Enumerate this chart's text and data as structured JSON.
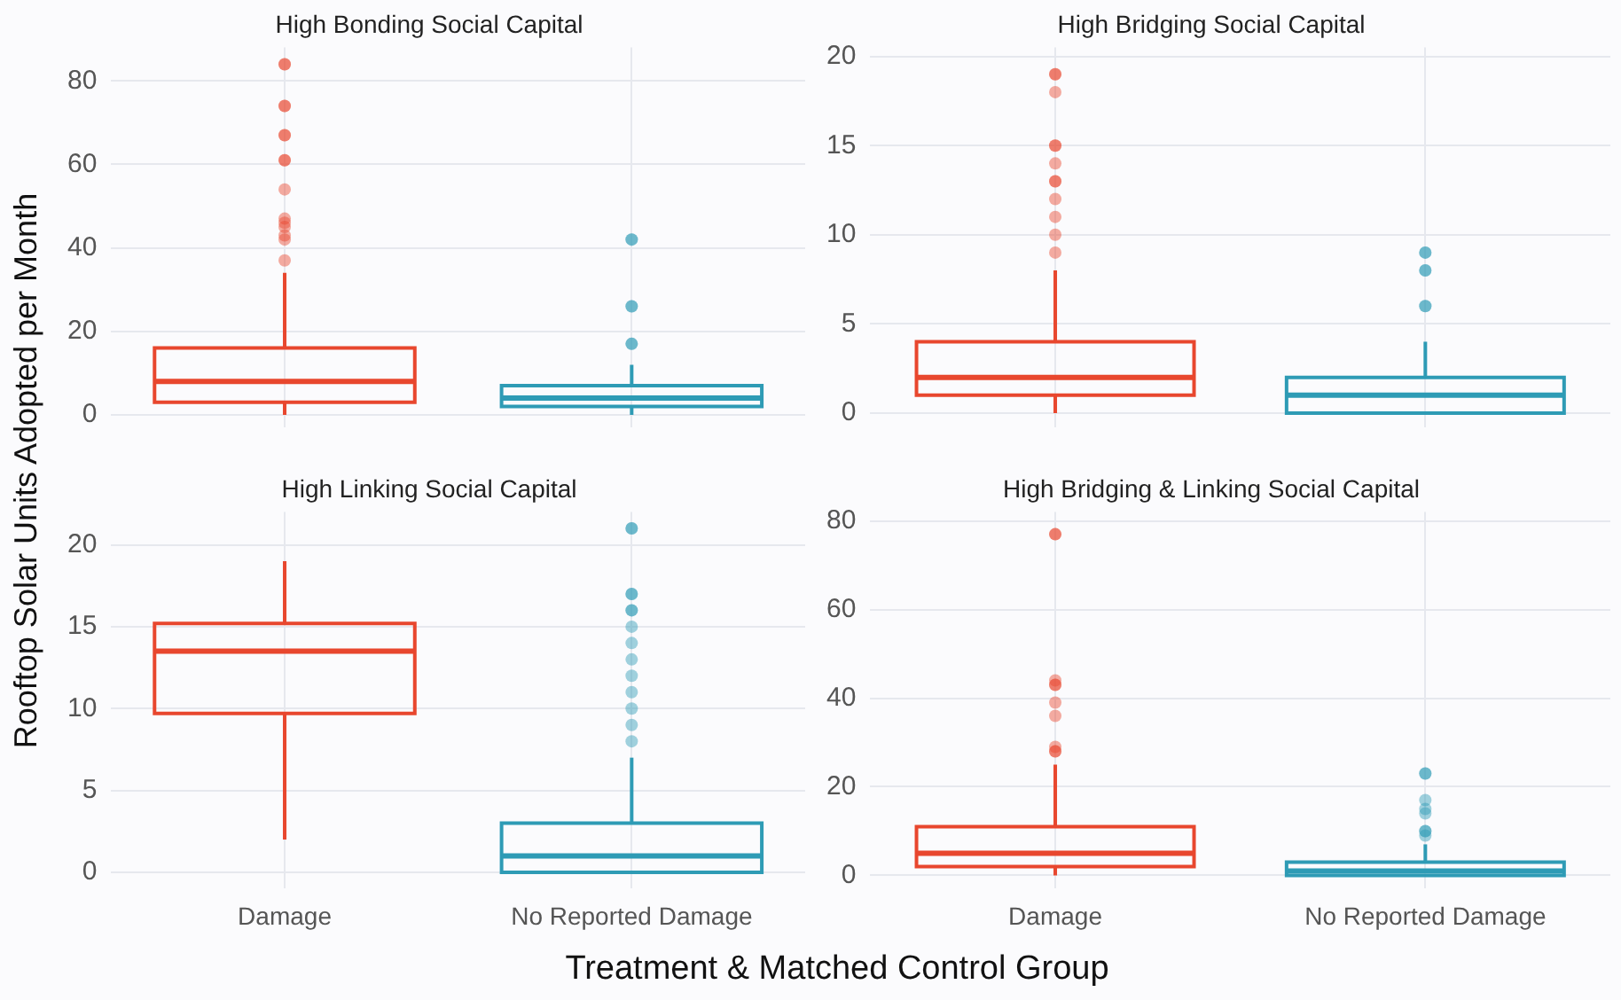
{
  "chart_data": [
    {
      "type": "box",
      "title": "High Bonding Social Capital",
      "ylabel": "Rooftop Solar Units Adopted per Month",
      "categories": [
        null,
        null
      ],
      "colors": [
        "#e8472e",
        "#2e9bb5"
      ],
      "ylim": [
        -3,
        88
      ],
      "yticks": [
        0,
        20,
        40,
        60,
        80
      ],
      "grid": true,
      "tick_labels": "y",
      "boxes": [
        {
          "low": 0,
          "q1": 3,
          "median": 8,
          "q3": 16,
          "high": 34,
          "outliers": [
            84,
            84,
            74,
            74,
            67,
            67,
            61,
            61,
            54,
            47,
            46,
            45,
            43,
            42,
            37
          ]
        },
        {
          "low": 0,
          "q1": 2,
          "median": 4,
          "q3": 7,
          "high": 12,
          "outliers": [
            42,
            42,
            26,
            26,
            17,
            17
          ]
        }
      ]
    },
    {
      "type": "box",
      "title": "High Bridging Social Capital",
      "categories": [
        null,
        null
      ],
      "colors": [
        "#e8472e",
        "#2e9bb5"
      ],
      "ylim": [
        -0.8,
        20.5
      ],
      "yticks": [
        0,
        5,
        10,
        15,
        20
      ],
      "grid": true,
      "tick_labels": "y",
      "boxes": [
        {
          "low": 0,
          "q1": 1,
          "median": 2,
          "q3": 4,
          "high": 8,
          "outliers": [
            19,
            19,
            18,
            15,
            15,
            14,
            13,
            13,
            12,
            11,
            10,
            9
          ]
        },
        {
          "low": 0,
          "q1": 0,
          "median": 1,
          "q3": 2,
          "high": 4,
          "outliers": [
            9,
            9,
            8,
            8,
            6,
            6
          ]
        }
      ]
    },
    {
      "type": "box",
      "title": "High Linking Social Capital",
      "xlabel": "Treatment & Matched Control Group",
      "categories": [
        "Damage",
        "No Reported Damage"
      ],
      "colors": [
        "#e8472e",
        "#2e9bb5"
      ],
      "ylim": [
        -1,
        22
      ],
      "yticks": [
        0,
        5,
        10,
        15,
        20
      ],
      "grid": true,
      "boxes": [
        {
          "low": 2,
          "q1": 9.7,
          "median": 13.5,
          "q3": 15.2,
          "high": 19
        },
        {
          "low": 0,
          "q1": 0,
          "median": 1,
          "q3": 3,
          "high": 7,
          "outliers": [
            21,
            21,
            17,
            17,
            16,
            16,
            15,
            14,
            13,
            12,
            11,
            10,
            9,
            8
          ]
        }
      ]
    },
    {
      "type": "box",
      "title": "High Bridging & Linking Social Capital",
      "categories": [
        "Damage",
        "No Reported Damage"
      ],
      "colors": [
        "#e8472e",
        "#2e9bb5"
      ],
      "ylim": [
        -3,
        82
      ],
      "yticks": [
        0,
        20,
        40,
        60,
        80
      ],
      "grid": true,
      "boxes": [
        {
          "low": 0,
          "q1": 2,
          "median": 5,
          "q3": 11,
          "high": 25,
          "outliers": [
            77,
            77,
            44,
            43,
            43,
            39,
            36,
            29,
            28,
            28
          ]
        },
        {
          "low": 0,
          "q1": 0,
          "median": 1,
          "q3": 3,
          "high": 7,
          "outliers": [
            23,
            23,
            17,
            15,
            14,
            10,
            10,
            9
          ]
        }
      ]
    }
  ]
}
